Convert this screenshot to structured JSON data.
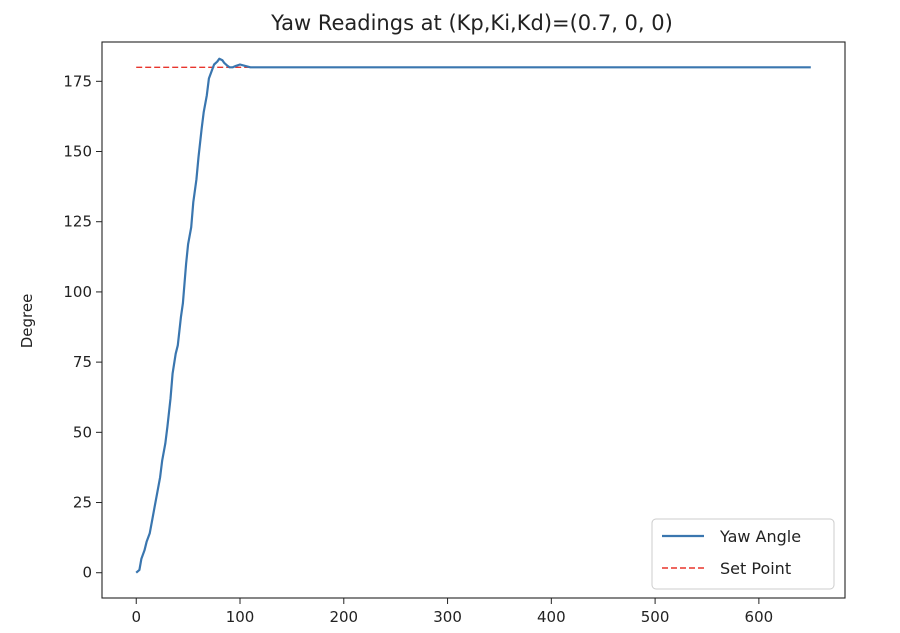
{
  "chart_data": {
    "type": "line",
    "title": "Yaw Readings at (Kp,Ki,Kd)=(0.7, 0, 0)",
    "xlabel": "",
    "ylabel": "Degree",
    "xlim": [
      -33,
      683
    ],
    "ylim": [
      -9,
      189
    ],
    "xticks": [
      0,
      100,
      200,
      300,
      400,
      500,
      600
    ],
    "yticks": [
      0,
      25,
      50,
      75,
      100,
      125,
      150,
      175
    ],
    "grid": false,
    "legend": "bottom-right",
    "series": [
      {
        "name": "Yaw Angle",
        "color": "#3a76af",
        "style": "solid",
        "x": [
          0,
          3,
          5,
          8,
          10,
          13,
          15,
          18,
          20,
          23,
          25,
          28,
          30,
          33,
          35,
          38,
          40,
          43,
          45,
          48,
          50,
          53,
          55,
          58,
          60,
          63,
          65,
          68,
          70,
          73,
          75,
          78,
          80,
          83,
          85,
          88,
          90,
          93,
          96,
          100,
          105,
          110,
          120,
          150,
          200,
          300,
          400,
          500,
          600,
          650
        ],
        "values": [
          0,
          1,
          5,
          8,
          11,
          14,
          18,
          24,
          28,
          34,
          40,
          46,
          52,
          62,
          71,
          78,
          81,
          91,
          96,
          110,
          117,
          123,
          132,
          140,
          148,
          158,
          164,
          170,
          176,
          179,
          181,
          182,
          183,
          182.5,
          181.5,
          180.5,
          180,
          180,
          180.5,
          181,
          180.5,
          180,
          180,
          180,
          180,
          180,
          180,
          180,
          180,
          180
        ]
      },
      {
        "name": "Set Point",
        "color": "#e8352c",
        "style": "dashed",
        "x": [
          0,
          650
        ],
        "values": [
          180,
          180
        ]
      }
    ]
  }
}
